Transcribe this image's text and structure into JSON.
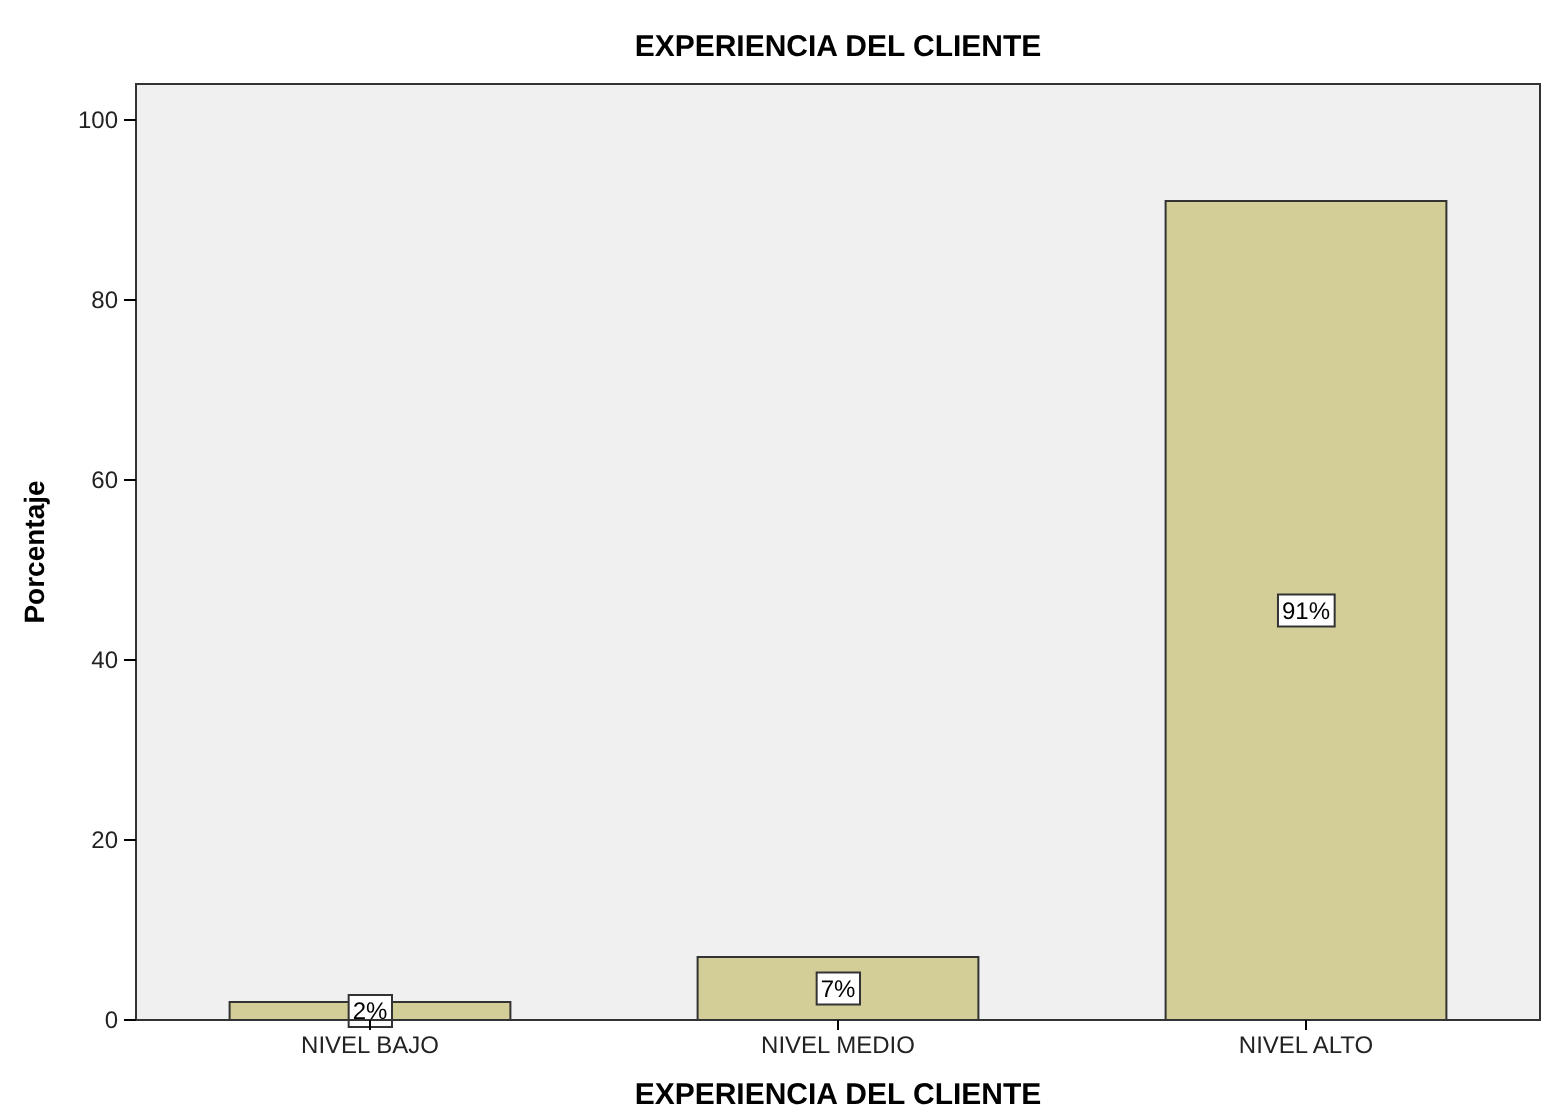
{
  "chart_data": {
    "type": "bar",
    "title": "EXPERIENCIA DEL CLIENTE",
    "xlabel": "EXPERIENCIA DEL CLIENTE",
    "ylabel": "Porcentaje",
    "categories": [
      "NIVEL BAJO",
      "NIVEL MEDIO",
      "NIVEL ALTO"
    ],
    "values": [
      2,
      7,
      91
    ],
    "value_labels": [
      "2%",
      "7%",
      "91%"
    ],
    "color": "#d3ce98",
    "ylim": [
      0,
      104
    ],
    "yticks": [
      0,
      20,
      40,
      60,
      80,
      100
    ],
    "grid": false
  }
}
